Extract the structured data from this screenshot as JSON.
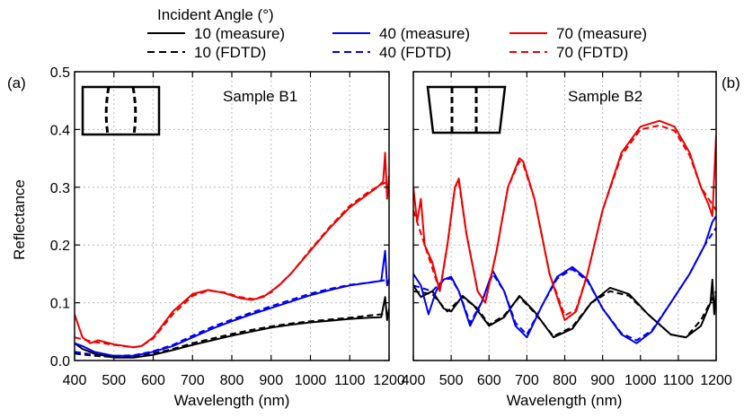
{
  "chart_data": [
    {
      "type": "line",
      "panel_label": "(a)",
      "annotation": "Sample B1",
      "xlabel": "Wavelength (nm)",
      "ylabel": "Reflectance",
      "xlim": [
        400,
        1200
      ],
      "ylim": [
        0,
        0.5
      ],
      "xticks": [
        400,
        500,
        600,
        700,
        800,
        900,
        1000,
        1100,
        1200
      ],
      "yticks": [
        0.0,
        0.1,
        0.2,
        0.3,
        0.4,
        0.5
      ],
      "ytick_labels": [
        "0.0",
        "0.1",
        "0.2",
        "0.3",
        "0.4",
        "0.5"
      ],
      "grid": true,
      "series": [
        {
          "name": "10 (measure)",
          "color": "#000000",
          "dash": "solid",
          "x": [
            400,
            420,
            450,
            500,
            550,
            600,
            650,
            700,
            750,
            800,
            850,
            900,
            950,
            1000,
            1050,
            1100,
            1150,
            1180,
            1190,
            1195,
            1200
          ],
          "y": [
            0.03,
            0.02,
            0.012,
            0.005,
            0.005,
            0.01,
            0.018,
            0.027,
            0.035,
            0.043,
            0.05,
            0.057,
            0.062,
            0.066,
            0.069,
            0.072,
            0.074,
            0.075,
            0.11,
            0.07,
            0.09
          ]
        },
        {
          "name": "10 (FDTD)",
          "color": "#000000",
          "dash": "dashed",
          "x": [
            400,
            450,
            500,
            550,
            600,
            650,
            700,
            750,
            800,
            850,
            900,
            950,
            1000,
            1050,
            1100,
            1150,
            1180,
            1200
          ],
          "y": [
            0.012,
            0.008,
            0.006,
            0.007,
            0.012,
            0.02,
            0.03,
            0.038,
            0.046,
            0.053,
            0.059,
            0.064,
            0.068,
            0.071,
            0.074,
            0.078,
            0.08,
            0.082
          ]
        },
        {
          "name": "40 (measure)",
          "color": "#0000ee",
          "dash": "solid",
          "x": [
            400,
            420,
            450,
            500,
            550,
            600,
            650,
            700,
            750,
            800,
            850,
            900,
            950,
            1000,
            1050,
            1100,
            1150,
            1180,
            1190,
            1195,
            1200
          ],
          "y": [
            0.03,
            0.025,
            0.015,
            0.008,
            0.008,
            0.015,
            0.025,
            0.04,
            0.055,
            0.068,
            0.08,
            0.091,
            0.102,
            0.113,
            0.122,
            0.13,
            0.135,
            0.138,
            0.19,
            0.13,
            0.14
          ]
        },
        {
          "name": "40 (FDTD)",
          "color": "#0000ee",
          "dash": "dashed",
          "x": [
            400,
            450,
            500,
            550,
            600,
            650,
            700,
            750,
            800,
            850,
            900,
            950,
            1000,
            1050,
            1100,
            1150,
            1180,
            1200
          ],
          "y": [
            0.015,
            0.01,
            0.008,
            0.009,
            0.016,
            0.027,
            0.043,
            0.058,
            0.071,
            0.083,
            0.094,
            0.105,
            0.116,
            0.124,
            0.131,
            0.135,
            0.138,
            0.14
          ]
        },
        {
          "name": "70 (measure)",
          "color": "#ee0000",
          "dash": "solid",
          "x": [
            400,
            410,
            420,
            440,
            460,
            500,
            550,
            570,
            600,
            650,
            700,
            740,
            780,
            820,
            850,
            880,
            920,
            950,
            1000,
            1050,
            1100,
            1150,
            1170,
            1185,
            1190,
            1195,
            1200
          ],
          "y": [
            0.08,
            0.06,
            0.04,
            0.03,
            0.035,
            0.028,
            0.023,
            0.025,
            0.04,
            0.085,
            0.115,
            0.122,
            0.117,
            0.108,
            0.105,
            0.11,
            0.13,
            0.15,
            0.19,
            0.23,
            0.265,
            0.29,
            0.3,
            0.31,
            0.36,
            0.28,
            0.32
          ]
        },
        {
          "name": "70 (FDTD)",
          "color": "#ee0000",
          "dash": "dashed",
          "x": [
            400,
            450,
            500,
            550,
            570,
            600,
            650,
            700,
            740,
            780,
            820,
            860,
            900,
            950,
            1000,
            1050,
            1100,
            1150,
            1180,
            1200
          ],
          "y": [
            0.04,
            0.032,
            0.027,
            0.023,
            0.025,
            0.038,
            0.08,
            0.112,
            0.121,
            0.118,
            0.11,
            0.106,
            0.118,
            0.15,
            0.192,
            0.232,
            0.268,
            0.293,
            0.305,
            0.31
          ]
        }
      ]
    },
    {
      "type": "line",
      "panel_label": "(b)",
      "annotation": "Sample B2",
      "xlabel": "Wavelength (nm)",
      "ylabel": "",
      "xlim": [
        400,
        1200
      ],
      "ylim": [
        0,
        0.5
      ],
      "xticks": [
        400,
        500,
        600,
        700,
        800,
        900,
        1000,
        1100,
        1200
      ],
      "yticks": [
        0.0,
        0.1,
        0.2,
        0.3,
        0.4,
        0.5
      ],
      "ytick_labels": [
        "0.0",
        "0.1",
        "0.2",
        "0.3",
        "0.4",
        "0.5"
      ],
      "grid": true,
      "series": [
        {
          "name": "10 (measure)",
          "color": "#000000",
          "dash": "solid",
          "x": [
            400,
            420,
            450,
            480,
            500,
            530,
            560,
            600,
            640,
            680,
            720,
            770,
            820,
            870,
            920,
            970,
            1020,
            1080,
            1120,
            1160,
            1185,
            1190,
            1195,
            1200
          ],
          "y": [
            0.13,
            0.11,
            0.12,
            0.09,
            0.085,
            0.112,
            0.095,
            0.06,
            0.075,
            0.112,
            0.085,
            0.04,
            0.055,
            0.1,
            0.126,
            0.115,
            0.08,
            0.045,
            0.04,
            0.06,
            0.1,
            0.14,
            0.08,
            0.12
          ]
        },
        {
          "name": "10 (FDTD)",
          "color": "#000000",
          "dash": "dashed",
          "x": [
            400,
            450,
            490,
            530,
            570,
            600,
            640,
            680,
            720,
            770,
            820,
            870,
            920,
            970,
            1020,
            1080,
            1120,
            1160,
            1200
          ],
          "y": [
            0.12,
            0.115,
            0.085,
            0.11,
            0.09,
            0.062,
            0.078,
            0.11,
            0.083,
            0.042,
            0.058,
            0.1,
            0.12,
            0.112,
            0.08,
            0.045,
            0.04,
            0.07,
            0.12
          ]
        },
        {
          "name": "40 (measure)",
          "color": "#0000ee",
          "dash": "solid",
          "x": [
            400,
            420,
            440,
            460,
            480,
            500,
            520,
            550,
            580,
            610,
            640,
            670,
            700,
            740,
            780,
            820,
            860,
            900,
            950,
            990,
            1030,
            1080,
            1130,
            1170,
            1190,
            1200
          ],
          "y": [
            0.15,
            0.13,
            0.08,
            0.12,
            0.14,
            0.145,
            0.12,
            0.06,
            0.1,
            0.155,
            0.12,
            0.06,
            0.04,
            0.095,
            0.145,
            0.162,
            0.14,
            0.09,
            0.045,
            0.03,
            0.05,
            0.1,
            0.15,
            0.2,
            0.24,
            0.25
          ]
        },
        {
          "name": "40 (FDTD)",
          "color": "#0000ee",
          "dash": "dashed",
          "x": [
            400,
            450,
            480,
            500,
            520,
            550,
            580,
            610,
            640,
            670,
            700,
            740,
            780,
            820,
            860,
            900,
            950,
            990,
            1030,
            1080,
            1130,
            1170,
            1200
          ],
          "y": [
            0.13,
            0.12,
            0.14,
            0.142,
            0.12,
            0.065,
            0.1,
            0.15,
            0.12,
            0.065,
            0.045,
            0.095,
            0.142,
            0.158,
            0.138,
            0.09,
            0.047,
            0.035,
            0.052,
            0.1,
            0.15,
            0.2,
            0.23
          ]
        },
        {
          "name": "70 (measure)",
          "color": "#ee0000",
          "dash": "solid",
          "x": [
            400,
            410,
            420,
            430,
            450,
            470,
            490,
            510,
            520,
            540,
            570,
            590,
            620,
            650,
            680,
            690,
            720,
            760,
            800,
            830,
            860,
            900,
            950,
            1000,
            1050,
            1090,
            1130,
            1160,
            1180,
            1190,
            1200
          ],
          "y": [
            0.3,
            0.24,
            0.28,
            0.2,
            0.17,
            0.12,
            0.2,
            0.3,
            0.315,
            0.22,
            0.12,
            0.1,
            0.19,
            0.3,
            0.35,
            0.345,
            0.28,
            0.15,
            0.07,
            0.085,
            0.15,
            0.26,
            0.36,
            0.405,
            0.415,
            0.405,
            0.36,
            0.3,
            0.27,
            0.25,
            0.39
          ]
        },
        {
          "name": "70 (FDTD)",
          "color": "#ee0000",
          "dash": "dashed",
          "x": [
            400,
            420,
            450,
            470,
            490,
            510,
            520,
            540,
            570,
            590,
            620,
            650,
            680,
            690,
            720,
            760,
            800,
            830,
            860,
            900,
            950,
            1000,
            1050,
            1090,
            1130,
            1160,
            1200
          ],
          "y": [
            0.26,
            0.22,
            0.16,
            0.12,
            0.2,
            0.3,
            0.31,
            0.22,
            0.12,
            0.1,
            0.19,
            0.3,
            0.345,
            0.34,
            0.28,
            0.15,
            0.078,
            0.088,
            0.15,
            0.26,
            0.355,
            0.4,
            0.407,
            0.398,
            0.355,
            0.3,
            0.26
          ]
        }
      ]
    }
  ],
  "legend": {
    "title": "Incident Angle (°)",
    "entries": [
      {
        "label": "10 (measure)",
        "color": "#000000",
        "dash": "solid"
      },
      {
        "label": "40 (measure)",
        "color": "#0000ee",
        "dash": "solid"
      },
      {
        "label": "70 (measure)",
        "color": "#ee0000",
        "dash": "solid"
      },
      {
        "label": "10 (FDTD)",
        "color": "#000000",
        "dash": "dashed"
      },
      {
        "label": "40 (FDTD)",
        "color": "#0000ee",
        "dash": "dashed"
      },
      {
        "label": "70 (FDTD)",
        "color": "#ee0000",
        "dash": "dashed"
      }
    ]
  }
}
